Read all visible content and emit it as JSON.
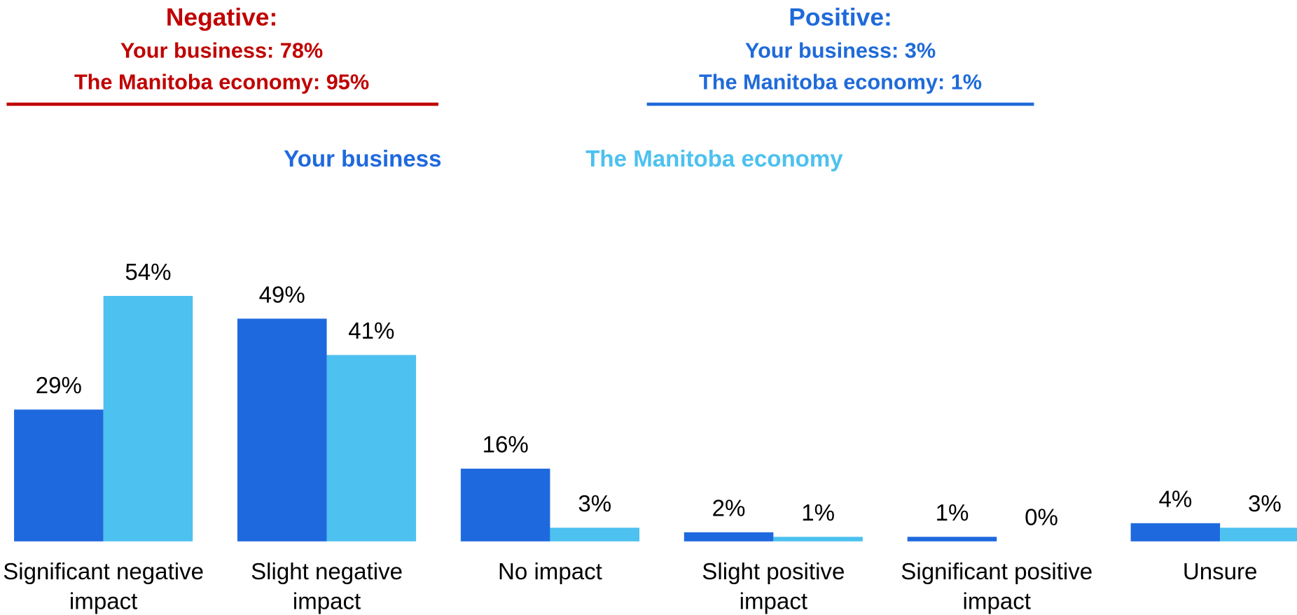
{
  "chart_data": {
    "type": "bar",
    "annotations": [
      {
        "title": "Negative:",
        "lines": [
          "Your business: 78%",
          "The Manitoba economy: 95%"
        ],
        "color": "#c00000"
      },
      {
        "title": "Positive:",
        "lines": [
          "Your business: 3%",
          "The Manitoba economy: 1%"
        ],
        "color": "#1f6ad9"
      }
    ],
    "categories": [
      "Significant negative impact",
      "Slight negative impact",
      "No impact",
      "Slight positive impact",
      "Significant positive impact",
      "Unsure"
    ],
    "series": [
      {
        "name": "Your business",
        "color": "#1f69de",
        "values": [
          29,
          49,
          16,
          2,
          1,
          4
        ],
        "value_labels": [
          "29%",
          "49%",
          "16%",
          "2%",
          "1%",
          "4%"
        ]
      },
      {
        "name": "The Manitoba economy",
        "color": "#4dc1ef",
        "values": [
          54,
          41,
          3,
          1,
          0,
          3
        ],
        "value_labels": [
          "54%",
          "41%",
          "3%",
          "1%",
          "0%",
          "3%"
        ]
      }
    ]
  }
}
